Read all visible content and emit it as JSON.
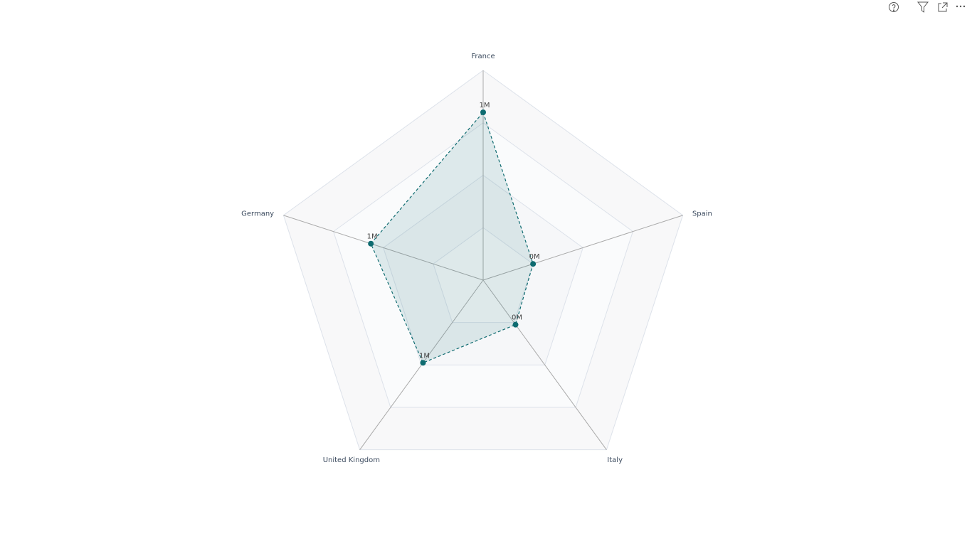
{
  "chart_data": {
    "type": "radar",
    "categories": [
      "France",
      "Spain",
      "Italy",
      "United Kingdom",
      "Germany"
    ],
    "values": [
      1280000,
      400000,
      420000,
      780000,
      900000
    ],
    "value_labels": [
      "1M",
      "0M",
      "0M",
      "1M",
      "1M"
    ],
    "rlim": [
      0,
      1600000
    ],
    "color": "#0e6b70"
  }
}
